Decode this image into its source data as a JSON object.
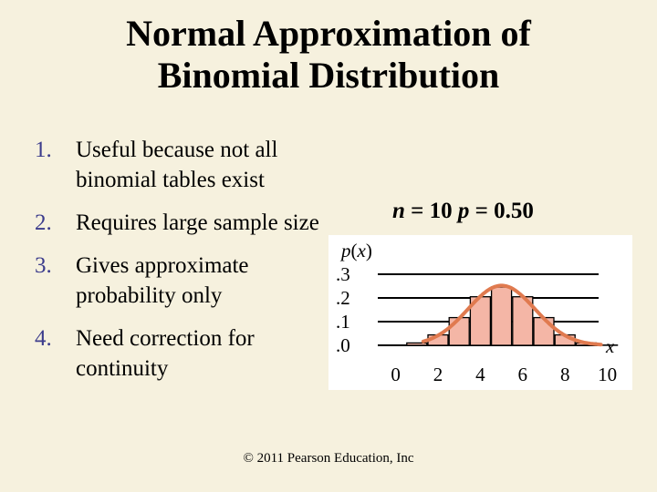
{
  "slide": {
    "title_line1": "Normal Approximation of",
    "title_line2": "Binomial Distribution",
    "bullets": [
      {
        "num": "1.",
        "text": "Useful because not all binomial tables exist"
      },
      {
        "num": "2.",
        "text": "Requires large sample size"
      },
      {
        "num": "3.",
        "text": "Gives approximate probability only"
      },
      {
        "num": "4.",
        "text": "Need correction for continuity"
      }
    ],
    "footer": "© 2011 Pearson Education, Inc"
  },
  "chart_heading": {
    "n_label": "n",
    "n_value": " = 10  ",
    "p_label": "p",
    "p_value": " = 0.50"
  },
  "chart_data": {
    "type": "bar",
    "title": "n = 10  p = 0.50",
    "ylabel": "p(x)",
    "xlabel": "x",
    "ylim": [
      0,
      0.3
    ],
    "yticks": [
      ".3",
      ".2",
      ".1",
      ".0"
    ],
    "xticks": [
      "0",
      "2",
      "4",
      "6",
      "8",
      "10"
    ],
    "x": [
      0,
      1,
      2,
      3,
      4,
      5,
      6,
      7,
      8,
      9,
      10
    ],
    "values": [
      0.001,
      0.01,
      0.044,
      0.117,
      0.205,
      0.246,
      0.205,
      0.117,
      0.044,
      0.01,
      0.001
    ],
    "bar_color": "#f4b6a6",
    "curve_color": "#e07a4f",
    "curve": "normal approximation"
  }
}
